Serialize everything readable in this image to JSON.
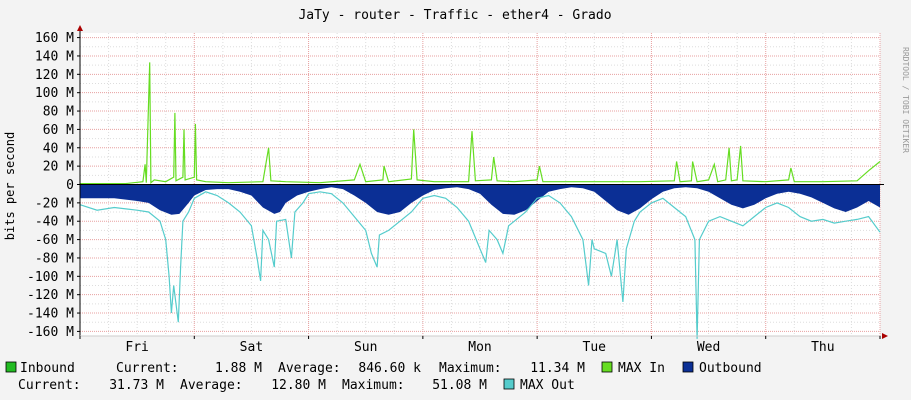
{
  "chart_data": {
    "type": "area",
    "title": "JaTy - router - Traffic - ether4 - Grado",
    "ylabel": "bits per second",
    "watermark": "RRDTOOL / TOBI OETIKER",
    "ylim": [
      -165,
      165
    ],
    "y_unit": "M bits/s",
    "y_ticks": [
      160,
      140,
      120,
      100,
      80,
      60,
      40,
      20,
      0,
      -20,
      -40,
      -60,
      -80,
      -100,
      -120,
      -140,
      -160
    ],
    "y_tick_labels": [
      "160 M",
      "140 M",
      "120 M",
      "100 M",
      "80 M",
      "60 M",
      "40 M",
      "20 M",
      "0",
      "-20 M",
      "-40 M",
      "-60 M",
      "-80 M",
      "-100 M",
      "-120 M",
      "-140 M",
      "-160 M"
    ],
    "x_range_days": [
      0,
      7
    ],
    "x_day_labels": [
      "Fri",
      "Sat",
      "Sun",
      "Mon",
      "Tue",
      "Wed",
      "Thu"
    ],
    "series": [
      {
        "name": "MAX In",
        "color": "#66dd22",
        "style": "line",
        "points": [
          [
            0,
            1
          ],
          [
            0.2,
            1
          ],
          [
            0.4,
            1
          ],
          [
            0.55,
            3
          ],
          [
            0.57,
            22
          ],
          [
            0.58,
            2
          ],
          [
            0.61,
            133
          ],
          [
            0.62,
            2
          ],
          [
            0.65,
            5
          ],
          [
            0.75,
            3
          ],
          [
            0.82,
            8
          ],
          [
            0.83,
            78
          ],
          [
            0.84,
            4
          ],
          [
            0.9,
            8
          ],
          [
            0.91,
            60
          ],
          [
            0.92,
            5
          ],
          [
            1.0,
            8
          ],
          [
            1.01,
            66
          ],
          [
            1.02,
            5
          ],
          [
            1.1,
            3
          ],
          [
            1.3,
            2
          ],
          [
            1.6,
            3
          ],
          [
            1.65,
            40
          ],
          [
            1.67,
            4
          ],
          [
            1.8,
            3
          ],
          [
            2.1,
            2
          ],
          [
            2.4,
            5
          ],
          [
            2.45,
            22
          ],
          [
            2.5,
            3
          ],
          [
            2.65,
            5
          ],
          [
            2.66,
            20
          ],
          [
            2.7,
            3
          ],
          [
            2.9,
            6
          ],
          [
            2.92,
            60
          ],
          [
            2.95,
            5
          ],
          [
            3.1,
            3
          ],
          [
            3.4,
            3
          ],
          [
            3.43,
            58
          ],
          [
            3.46,
            4
          ],
          [
            3.6,
            5
          ],
          [
            3.62,
            30
          ],
          [
            3.65,
            4
          ],
          [
            3.8,
            3
          ],
          [
            4.0,
            5
          ],
          [
            4.02,
            20
          ],
          [
            4.05,
            3
          ],
          [
            4.3,
            3
          ],
          [
            4.6,
            3
          ],
          [
            4.9,
            3
          ],
          [
            5.2,
            4
          ],
          [
            5.22,
            25
          ],
          [
            5.25,
            3
          ],
          [
            5.35,
            4
          ],
          [
            5.36,
            25
          ],
          [
            5.4,
            3
          ],
          [
            5.5,
            5
          ],
          [
            5.55,
            22
          ],
          [
            5.58,
            3
          ],
          [
            5.65,
            5
          ],
          [
            5.68,
            40
          ],
          [
            5.7,
            4
          ],
          [
            5.75,
            5
          ],
          [
            5.78,
            42
          ],
          [
            5.8,
            4
          ],
          [
            6.0,
            3
          ],
          [
            6.2,
            5
          ],
          [
            6.22,
            18
          ],
          [
            6.25,
            3
          ],
          [
            6.5,
            3
          ],
          [
            6.8,
            4
          ],
          [
            6.9,
            15
          ],
          [
            7.0,
            25
          ]
        ]
      },
      {
        "name": "Outbound",
        "color": "#0b2f95",
        "style": "area",
        "points": [
          [
            0,
            -15
          ],
          [
            0.3,
            -15
          ],
          [
            0.5,
            -18
          ],
          [
            0.6,
            -20
          ],
          [
            0.7,
            -28
          ],
          [
            0.8,
            -33
          ],
          [
            0.87,
            -32
          ],
          [
            0.95,
            -20
          ],
          [
            1.0,
            -12
          ],
          [
            1.1,
            -6
          ],
          [
            1.2,
            -5
          ],
          [
            1.3,
            -5
          ],
          [
            1.4,
            -8
          ],
          [
            1.5,
            -12
          ],
          [
            1.6,
            -25
          ],
          [
            1.7,
            -32
          ],
          [
            1.75,
            -30
          ],
          [
            1.8,
            -20
          ],
          [
            1.9,
            -12
          ],
          [
            2.0,
            -8
          ],
          [
            2.1,
            -5
          ],
          [
            2.2,
            -3
          ],
          [
            2.3,
            -5
          ],
          [
            2.4,
            -12
          ],
          [
            2.5,
            -20
          ],
          [
            2.6,
            -30
          ],
          [
            2.7,
            -33
          ],
          [
            2.8,
            -30
          ],
          [
            2.9,
            -20
          ],
          [
            3.0,
            -12
          ],
          [
            3.1,
            -6
          ],
          [
            3.2,
            -4
          ],
          [
            3.3,
            -3
          ],
          [
            3.4,
            -5
          ],
          [
            3.5,
            -10
          ],
          [
            3.6,
            -22
          ],
          [
            3.7,
            -32
          ],
          [
            3.8,
            -33
          ],
          [
            3.9,
            -28
          ],
          [
            4.0,
            -18
          ],
          [
            4.1,
            -8
          ],
          [
            4.2,
            -5
          ],
          [
            4.3,
            -3
          ],
          [
            4.4,
            -4
          ],
          [
            4.5,
            -8
          ],
          [
            4.6,
            -18
          ],
          [
            4.7,
            -28
          ],
          [
            4.8,
            -33
          ],
          [
            4.9,
            -26
          ],
          [
            5.0,
            -16
          ],
          [
            5.1,
            -8
          ],
          [
            5.2,
            -4
          ],
          [
            5.3,
            -3
          ],
          [
            5.4,
            -4
          ],
          [
            5.5,
            -8
          ],
          [
            5.6,
            -15
          ],
          [
            5.7,
            -22
          ],
          [
            5.8,
            -26
          ],
          [
            5.9,
            -22
          ],
          [
            6.0,
            -15
          ],
          [
            6.1,
            -10
          ],
          [
            6.2,
            -8
          ],
          [
            6.3,
            -10
          ],
          [
            6.4,
            -14
          ],
          [
            6.5,
            -20
          ],
          [
            6.6,
            -26
          ],
          [
            6.7,
            -30
          ],
          [
            6.8,
            -25
          ],
          [
            6.9,
            -18
          ],
          [
            7.0,
            -25
          ]
        ]
      },
      {
        "name": "MAX Out",
        "color": "#55cccc",
        "style": "line",
        "points": [
          [
            0,
            -22
          ],
          [
            0.15,
            -28
          ],
          [
            0.3,
            -25
          ],
          [
            0.5,
            -28
          ],
          [
            0.6,
            -30
          ],
          [
            0.7,
            -40
          ],
          [
            0.75,
            -60
          ],
          [
            0.78,
            -100
          ],
          [
            0.8,
            -140
          ],
          [
            0.82,
            -110
          ],
          [
            0.84,
            -130
          ],
          [
            0.86,
            -150
          ],
          [
            0.88,
            -90
          ],
          [
            0.9,
            -40
          ],
          [
            0.95,
            -30
          ],
          [
            1.0,
            -15
          ],
          [
            1.1,
            -8
          ],
          [
            1.2,
            -12
          ],
          [
            1.3,
            -20
          ],
          [
            1.4,
            -30
          ],
          [
            1.5,
            -45
          ],
          [
            1.55,
            -80
          ],
          [
            1.58,
            -105
          ],
          [
            1.6,
            -50
          ],
          [
            1.65,
            -60
          ],
          [
            1.7,
            -90
          ],
          [
            1.72,
            -40
          ],
          [
            1.8,
            -38
          ],
          [
            1.85,
            -80
          ],
          [
            1.88,
            -30
          ],
          [
            1.95,
            -20
          ],
          [
            2.0,
            -10
          ],
          [
            2.1,
            -8
          ],
          [
            2.2,
            -10
          ],
          [
            2.3,
            -20
          ],
          [
            2.4,
            -35
          ],
          [
            2.5,
            -50
          ],
          [
            2.55,
            -75
          ],
          [
            2.6,
            -90
          ],
          [
            2.62,
            -55
          ],
          [
            2.7,
            -50
          ],
          [
            2.8,
            -40
          ],
          [
            2.9,
            -30
          ],
          [
            3.0,
            -15
          ],
          [
            3.1,
            -12
          ],
          [
            3.2,
            -15
          ],
          [
            3.3,
            -25
          ],
          [
            3.4,
            -40
          ],
          [
            3.45,
            -55
          ],
          [
            3.5,
            -70
          ],
          [
            3.55,
            -85
          ],
          [
            3.58,
            -50
          ],
          [
            3.65,
            -60
          ],
          [
            3.7,
            -75
          ],
          [
            3.75,
            -45
          ],
          [
            3.8,
            -40
          ],
          [
            3.9,
            -30
          ],
          [
            4.0,
            -15
          ],
          [
            4.1,
            -12
          ],
          [
            4.2,
            -20
          ],
          [
            4.3,
            -35
          ],
          [
            4.4,
            -60
          ],
          [
            4.45,
            -110
          ],
          [
            4.48,
            -60
          ],
          [
            4.5,
            -70
          ],
          [
            4.6,
            -75
          ],
          [
            4.65,
            -100
          ],
          [
            4.7,
            -60
          ],
          [
            4.75,
            -128
          ],
          [
            4.78,
            -70
          ],
          [
            4.85,
            -40
          ],
          [
            4.9,
            -30
          ],
          [
            5.0,
            -20
          ],
          [
            5.1,
            -15
          ],
          [
            5.2,
            -25
          ],
          [
            5.3,
            -35
          ],
          [
            5.38,
            -60
          ],
          [
            5.4,
            -168
          ],
          [
            5.42,
            -60
          ],
          [
            5.5,
            -40
          ],
          [
            5.6,
            -35
          ],
          [
            5.7,
            -40
          ],
          [
            5.8,
            -45
          ],
          [
            5.9,
            -35
          ],
          [
            6.0,
            -25
          ],
          [
            6.1,
            -20
          ],
          [
            6.2,
            -25
          ],
          [
            6.3,
            -35
          ],
          [
            6.4,
            -40
          ],
          [
            6.5,
            -38
          ],
          [
            6.6,
            -42
          ],
          [
            6.7,
            -40
          ],
          [
            6.8,
            -38
          ],
          [
            6.9,
            -35
          ],
          [
            7.0,
            -52
          ]
        ]
      }
    ]
  },
  "legend": {
    "inbound": {
      "swatch_color": "#22bb22",
      "label": "Inbound",
      "current_label": "Current:",
      "current": "1.88 M",
      "average_label": "Average:",
      "average": "846.60 k",
      "maximum_label": "Maximum:",
      "maximum": "11.34 M"
    },
    "max_in": {
      "swatch_color": "#66dd22",
      "label": "MAX In"
    },
    "outbound": {
      "swatch_color": "#0b2f95",
      "label": "Outbound",
      "current_label": "Current:",
      "current": "31.73 M",
      "average_label": "Average:",
      "average": "12.80 M",
      "maximum_label": "Maximum:",
      "maximum": "51.08 M"
    },
    "max_out": {
      "swatch_color": "#55cccc",
      "label": "MAX Out"
    }
  },
  "colors": {
    "background": "#f3f3f3",
    "plot_background": "#ffffff",
    "major_grid": "#e8a0a0",
    "minor_grid": "#dddddd",
    "axis": "#000000",
    "arrow": "#aa0000"
  }
}
